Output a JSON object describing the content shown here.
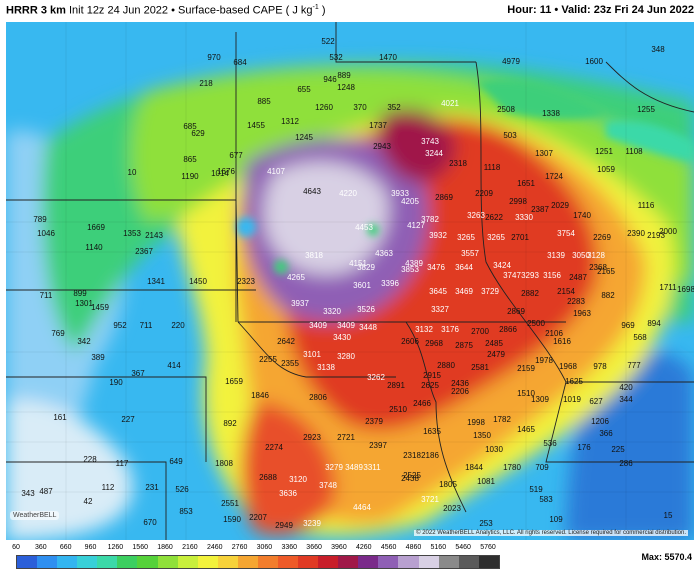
{
  "header": {
    "model": "HRRR 3 km",
    "init": "Init 12z 24 Jun 2022",
    "bullet": "•",
    "field": "Surface-based CAPE ( J kg",
    "unit_sup": "-1",
    "close_paren": " )",
    "hour_label": "Hour:",
    "hour_value": "11",
    "valid_label": "Valid:",
    "valid_value": "23z Fri 24 Jun 2022"
  },
  "copyright": "© 2022 WeatherBELL Analytics, LLC. All rights reserved. License required for commercial distribution.",
  "logo": "WeatherBELL",
  "colorbar": {
    "ticks": [
      "60",
      "360",
      "660",
      "960",
      "1260",
      "1560",
      "1860",
      "2160",
      "2460",
      "2760",
      "3060",
      "3360",
      "3660",
      "3960",
      "4260",
      "4560",
      "4860",
      "5160",
      "5460",
      "5760"
    ],
    "colors": [
      "#2b5fd9",
      "#2f8ff0",
      "#33b5f0",
      "#38d0d8",
      "#3bd9a8",
      "#3ccf60",
      "#55d23a",
      "#8fe03a",
      "#c8ef3c",
      "#f2f23c",
      "#f7d23a",
      "#f5a632",
      "#f27d2c",
      "#ee5a28",
      "#e03a24",
      "#c81e2a",
      "#a01848",
      "#7a2a8a",
      "#8f5fb5",
      "#b8a0d0",
      "#d8d0e4",
      "#8a8a8a",
      "#5a5a5a",
      "#2e2e2e"
    ],
    "max_label": "Max:",
    "max_value": "5570.4"
  },
  "values": [
    {
      "t": "522"
    },
    {
      "t": "970"
    },
    {
      "t": "684"
    },
    {
      "t": "532"
    },
    {
      "t": "889"
    },
    {
      "t": "946"
    },
    {
      "t": "1248"
    },
    {
      "t": "1470"
    },
    {
      "t": "4979"
    },
    {
      "t": "1600"
    },
    {
      "t": "348"
    },
    {
      "t": "218"
    },
    {
      "t": "655"
    },
    {
      "t": "885"
    },
    {
      "t": "1260"
    },
    {
      "t": "370"
    },
    {
      "t": "352"
    },
    {
      "t": "4021"
    },
    {
      "t": "2508"
    },
    {
      "t": "1338"
    },
    {
      "t": "1255"
    },
    {
      "t": "685"
    },
    {
      "t": "629"
    },
    {
      "t": "1455"
    },
    {
      "t": "1312"
    },
    {
      "t": "1737"
    },
    {
      "t": "1245"
    },
    {
      "t": "2943"
    },
    {
      "t": "3743"
    },
    {
      "t": "3244"
    },
    {
      "t": "503"
    },
    {
      "t": "1307"
    },
    {
      "t": "1251"
    },
    {
      "t": "1108"
    },
    {
      "t": "865"
    },
    {
      "t": "677"
    },
    {
      "t": "1190"
    },
    {
      "t": "4107"
    },
    {
      "t": "2318"
    },
    {
      "t": "1118"
    },
    {
      "t": "1724"
    },
    {
      "t": "1059"
    },
    {
      "t": "10"
    },
    {
      "t": "1014"
    },
    {
      "t": "1676"
    },
    {
      "t": "4643"
    },
    {
      "t": "4220"
    },
    {
      "t": "3933"
    },
    {
      "t": "4205"
    },
    {
      "t": "2869"
    },
    {
      "t": "2209"
    },
    {
      "t": "1651"
    },
    {
      "t": "2998"
    },
    {
      "t": "2387"
    },
    {
      "t": "2029"
    },
    {
      "t": "789"
    },
    {
      "t": "1669"
    },
    {
      "t": "1353"
    },
    {
      "t": "2143"
    },
    {
      "t": "1046"
    },
    {
      "t": "4453"
    },
    {
      "t": "4127"
    },
    {
      "t": "3782"
    },
    {
      "t": "3263"
    },
    {
      "t": "2622"
    },
    {
      "t": "3330"
    },
    {
      "t": "1740"
    },
    {
      "t": "1116"
    },
    {
      "t": "1140"
    },
    {
      "t": "2367"
    },
    {
      "t": "4363"
    },
    {
      "t": "3932"
    },
    {
      "t": "3265"
    },
    {
      "t": "3265"
    },
    {
      "t": "2701"
    },
    {
      "t": "3754"
    },
    {
      "t": "2269"
    },
    {
      "t": "2390"
    },
    {
      "t": "2193"
    },
    {
      "t": "2000"
    },
    {
      "t": "3818"
    },
    {
      "t": "4151"
    },
    {
      "t": "4389"
    },
    {
      "t": "3557"
    },
    {
      "t": "3139"
    },
    {
      "t": "3050"
    },
    {
      "t": "3128"
    },
    {
      "t": "2368"
    },
    {
      "t": "1341"
    },
    {
      "t": "1450"
    },
    {
      "t": "2323"
    },
    {
      "t": "4265"
    },
    {
      "t": "3829"
    },
    {
      "t": "3853"
    },
    {
      "t": "3476"
    },
    {
      "t": "3644"
    },
    {
      "t": "3424"
    },
    {
      "t": "3747"
    },
    {
      "t": "3293"
    },
    {
      "t": "3156"
    },
    {
      "t": "2487"
    },
    {
      "t": "2165"
    },
    {
      "t": "711"
    },
    {
      "t": "899"
    },
    {
      "t": "1301"
    },
    {
      "t": "1459"
    },
    {
      "t": "3601"
    },
    {
      "t": "3396"
    },
    {
      "t": "3645"
    },
    {
      "t": "3469"
    },
    {
      "t": "3729"
    },
    {
      "t": "2882"
    },
    {
      "t": "2154"
    },
    {
      "t": "2283"
    },
    {
      "t": "882"
    },
    {
      "t": "1711"
    },
    {
      "t": "1698"
    },
    {
      "t": "3937"
    },
    {
      "t": "3320"
    },
    {
      "t": "3526"
    },
    {
      "t": "3327"
    },
    {
      "t": "2869"
    },
    {
      "t": "1963"
    },
    {
      "t": "952"
    },
    {
      "t": "711"
    },
    {
      "t": "220"
    },
    {
      "t": "769"
    },
    {
      "t": "342"
    },
    {
      "t": "3409"
    },
    {
      "t": "3409"
    },
    {
      "t": "3448"
    },
    {
      "t": "3132"
    },
    {
      "t": "3176"
    },
    {
      "t": "2700"
    },
    {
      "t": "2866"
    },
    {
      "t": "2500"
    },
    {
      "t": "2106"
    },
    {
      "t": "969"
    },
    {
      "t": "894"
    },
    {
      "t": "2642"
    },
    {
      "t": "3430"
    },
    {
      "t": "2606"
    },
    {
      "t": "2968"
    },
    {
      "t": "2875"
    },
    {
      "t": "2485"
    },
    {
      "t": "1616"
    },
    {
      "t": "568"
    },
    {
      "t": "389"
    },
    {
      "t": "414"
    },
    {
      "t": "2255"
    },
    {
      "t": "3101"
    },
    {
      "t": "3280"
    },
    {
      "t": "2479"
    },
    {
      "t": "1978"
    },
    {
      "t": "1968"
    },
    {
      "t": "978"
    },
    {
      "t": "777"
    },
    {
      "t": "367"
    },
    {
      "t": "2355"
    },
    {
      "t": "3138"
    },
    {
      "t": "2880"
    },
    {
      "t": "2581"
    },
    {
      "t": "2159"
    },
    {
      "t": "190"
    },
    {
      "t": "1659"
    },
    {
      "t": "3262"
    },
    {
      "t": "2915"
    },
    {
      "t": "2625"
    },
    {
      "t": "2436"
    },
    {
      "t": "1625"
    },
    {
      "t": "420"
    },
    {
      "t": "1846"
    },
    {
      "t": "2806"
    },
    {
      "t": "2891"
    },
    {
      "t": "2206"
    },
    {
      "t": "1510"
    },
    {
      "t": "1309"
    },
    {
      "t": "1019"
    },
    {
      "t": "627"
    },
    {
      "t": "344"
    },
    {
      "t": "2510"
    },
    {
      "t": "2466"
    },
    {
      "t": "161"
    },
    {
      "t": "227"
    },
    {
      "t": "892"
    },
    {
      "t": "2379"
    },
    {
      "t": "1998"
    },
    {
      "t": "1782"
    },
    {
      "t": "1465"
    },
    {
      "t": "1206"
    },
    {
      "t": "2721"
    },
    {
      "t": "1635"
    },
    {
      "t": "1350"
    },
    {
      "t": "536"
    },
    {
      "t": "366"
    },
    {
      "t": "2274"
    },
    {
      "t": "2923"
    },
    {
      "t": "2397"
    },
    {
      "t": "2318"
    },
    {
      "t": "2186"
    },
    {
      "t": "1030"
    },
    {
      "t": "176"
    },
    {
      "t": "225"
    },
    {
      "t": "228"
    },
    {
      "t": "117"
    },
    {
      "t": "649"
    },
    {
      "t": "1808"
    },
    {
      "t": "3279"
    },
    {
      "t": "3489"
    },
    {
      "t": "3311"
    },
    {
      "t": "2438"
    },
    {
      "t": "1844"
    },
    {
      "t": "1780"
    },
    {
      "t": "709"
    },
    {
      "t": "286"
    },
    {
      "t": "2688"
    },
    {
      "t": "3120"
    },
    {
      "t": "3748"
    },
    {
      "t": "2525"
    },
    {
      "t": "1081"
    },
    {
      "t": "112"
    },
    {
      "t": "231"
    },
    {
      "t": "526"
    },
    {
      "t": "3636"
    },
    {
      "t": "1805"
    },
    {
      "t": "519"
    },
    {
      "t": "343"
    },
    {
      "t": "487"
    },
    {
      "t": "42"
    },
    {
      "t": "2551"
    },
    {
      "t": "3721"
    },
    {
      "t": "583"
    },
    {
      "t": "853"
    },
    {
      "t": "4464"
    },
    {
      "t": "2023"
    },
    {
      "t": "670"
    },
    {
      "t": "1590"
    },
    {
      "t": "2207"
    },
    {
      "t": "2949"
    },
    {
      "t": "3239"
    },
    {
      "t": "253"
    },
    {
      "t": "109"
    },
    {
      "t": "15"
    }
  ]
}
